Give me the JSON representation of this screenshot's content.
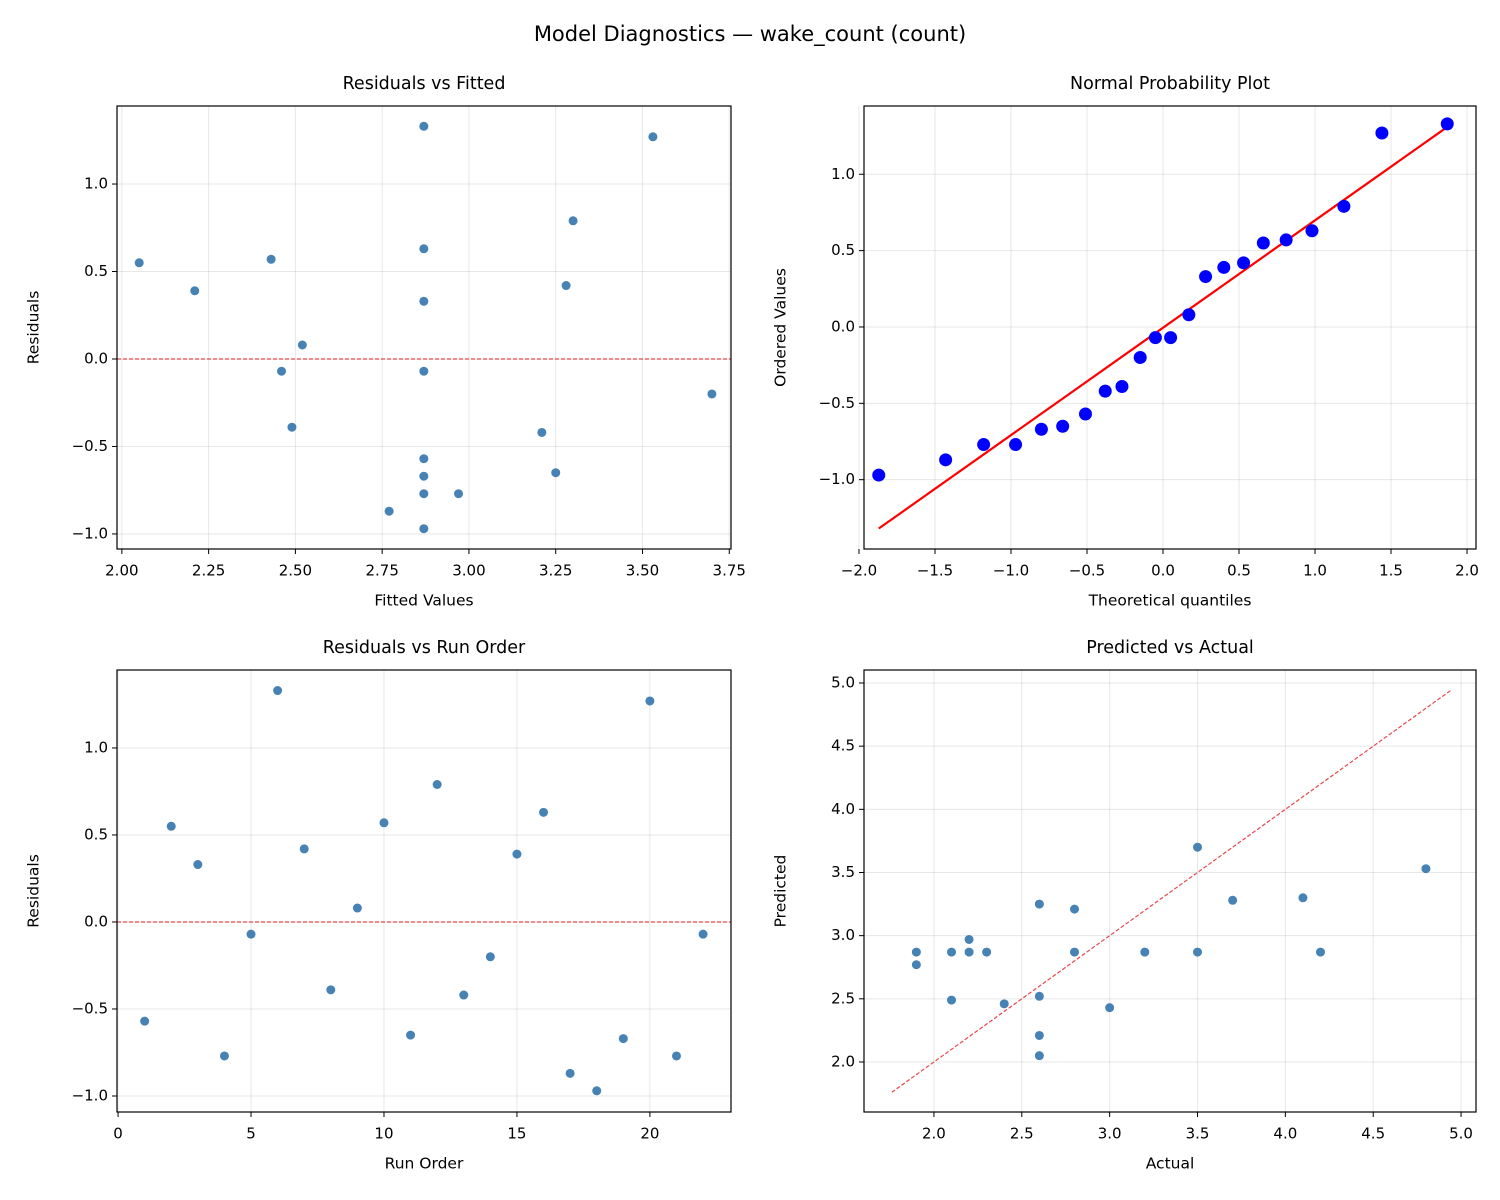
{
  "title": "Model Diagnostics — wake_count (count)",
  "chart_data": [
    {
      "type": "scatter",
      "title": "Residuals vs Fitted",
      "xlabel": "Fitted Values",
      "ylabel": "Residuals",
      "x": [
        2.87,
        2.05,
        2.87,
        2.97,
        2.46,
        2.87,
        3.28,
        2.49,
        2.52,
        2.43,
        3.25,
        3.3,
        3.21,
        3.7,
        2.21,
        2.87,
        2.77,
        2.87,
        2.87,
        3.53,
        2.87,
        2.87
      ],
      "values": [
        -0.57,
        0.55,
        0.33,
        -0.77,
        -0.07,
        1.33,
        0.42,
        -0.39,
        0.08,
        0.57,
        -0.65,
        0.79,
        -0.42,
        -0.2,
        0.39,
        0.63,
        -0.87,
        -0.97,
        -0.67,
        1.27,
        -0.77,
        -0.07
      ],
      "color": "#4682b4",
      "marker_size": 4.5,
      "xlim": [
        1.986,
        3.755
      ],
      "ylim": [
        -1.086,
        1.446
      ],
      "xticks": [
        {
          "value": 2.0,
          "label": "2.00"
        },
        {
          "value": 2.25,
          "label": "2.25"
        },
        {
          "value": 2.5,
          "label": "2.50"
        },
        {
          "value": 2.75,
          "label": "2.75"
        },
        {
          "value": 3.0,
          "label": "3.00"
        },
        {
          "value": 3.25,
          "label": "3.25"
        },
        {
          "value": 3.5,
          "label": "3.50"
        },
        {
          "value": 3.75,
          "label": "3.75"
        }
      ],
      "yticks": [
        {
          "value": -1.0,
          "label": "−1.0"
        },
        {
          "value": -0.5,
          "label": "−0.5"
        },
        {
          "value": 0,
          "label": "0.0"
        },
        {
          "value": 0.5,
          "label": "0.5"
        },
        {
          "value": 1.0,
          "label": "1.0"
        }
      ],
      "grid": true,
      "hline": {
        "value": 0,
        "color": "#e8474a"
      }
    },
    {
      "type": "scatter",
      "title": "Normal Probability Plot",
      "xlabel": "Theoretical quantiles",
      "ylabel": "Ordered Values",
      "x": [
        -1.87,
        -1.43,
        -1.18,
        -0.97,
        -0.8,
        -0.66,
        -0.51,
        -0.38,
        -0.27,
        -0.15,
        -0.05,
        0.05,
        0.17,
        0.28,
        0.4,
        0.53,
        0.66,
        0.81,
        0.98,
        1.19,
        1.44,
        1.87
      ],
      "values": [
        -0.97,
        -0.87,
        -0.77,
        -0.77,
        -0.67,
        -0.65,
        -0.57,
        -0.42,
        -0.39,
        -0.2,
        -0.07,
        -0.07,
        0.08,
        0.33,
        0.39,
        0.42,
        0.55,
        0.57,
        0.63,
        0.79,
        1.27,
        1.33
      ],
      "color": "#0000ff",
      "marker_size": 6.5,
      "lines": [
        {
          "x": [
            -1.87,
            1.87
          ],
          "values": [
            -1.32,
            1.31
          ],
          "color": "#ff0000",
          "dashed": false
        }
      ],
      "xlim": [
        -1.967,
        2.059
      ],
      "ylim": [
        -1.454,
        1.447
      ],
      "xticks": [
        {
          "value": -2.0,
          "label": "−2.0"
        },
        {
          "value": -1.5,
          "label": "−1.5"
        },
        {
          "value": -1.0,
          "label": "−1.0"
        },
        {
          "value": -0.5,
          "label": "−0.5"
        },
        {
          "value": 0,
          "label": "0.0"
        },
        {
          "value": 0.5,
          "label": "0.5"
        },
        {
          "value": 1.0,
          "label": "1.0"
        },
        {
          "value": 1.5,
          "label": "1.5"
        },
        {
          "value": 2.0,
          "label": "2.0"
        }
      ],
      "yticks": [
        {
          "value": -1.0,
          "label": "−1.0"
        },
        {
          "value": -0.5,
          "label": "−0.5"
        },
        {
          "value": 0,
          "label": "0.0"
        },
        {
          "value": 0.5,
          "label": "0.5"
        },
        {
          "value": 1.0,
          "label": "1.0"
        }
      ],
      "grid": true
    },
    {
      "type": "scatter",
      "title": "Residuals vs Run Order",
      "xlabel": "Run Order",
      "ylabel": "Residuals",
      "x": [
        1,
        2,
        3,
        4,
        5,
        6,
        7,
        8,
        9,
        10,
        11,
        12,
        13,
        14,
        15,
        16,
        17,
        18,
        19,
        20,
        21,
        22
      ],
      "values": [
        -0.57,
        0.55,
        0.33,
        -0.77,
        -0.07,
        1.33,
        0.42,
        -0.39,
        0.08,
        0.57,
        -0.65,
        0.79,
        -0.42,
        -0.2,
        0.39,
        0.63,
        -0.87,
        -0.97,
        -0.67,
        1.27,
        -0.77,
        -0.07
      ],
      "color": "#4682b4",
      "marker_size": 4.5,
      "xlim": [
        -0.04,
        23.05
      ],
      "ylim": [
        -1.092,
        1.448
      ],
      "xticks": [
        0,
        5,
        10,
        15,
        20
      ],
      "yticks": [
        {
          "value": -1.0,
          "label": "−1.0"
        },
        {
          "value": -0.5,
          "label": "−0.5"
        },
        {
          "value": 0,
          "label": "0.0"
        },
        {
          "value": 0.5,
          "label": "0.5"
        },
        {
          "value": 1.0,
          "label": "1.0"
        }
      ],
      "grid": true,
      "hline": {
        "value": 0,
        "color": "#e8474a"
      }
    },
    {
      "type": "scatter",
      "title": "Predicted vs Actual",
      "xlabel": "Actual",
      "ylabel": "Predicted",
      "x": [
        2.3,
        2.6,
        3.2,
        2.2,
        2.4,
        4.2,
        3.7,
        2.1,
        2.6,
        3.0,
        2.6,
        4.1,
        2.8,
        3.5,
        2.6,
        3.5,
        1.9,
        1.9,
        2.2,
        4.8,
        2.1,
        2.8
      ],
      "values": [
        2.87,
        2.05,
        2.87,
        2.97,
        2.46,
        2.87,
        3.28,
        2.49,
        2.52,
        2.43,
        3.25,
        3.3,
        3.21,
        3.7,
        2.21,
        2.87,
        2.77,
        2.87,
        2.87,
        3.53,
        2.87,
        2.87
      ],
      "color": "#4682b4",
      "marker_size": 4.5,
      "lines": [
        {
          "x": [
            1.76,
            4.94
          ],
          "values": [
            1.76,
            4.94
          ],
          "color": "#e8474a",
          "dashed": true
        }
      ],
      "xlim": [
        1.602,
        5.085
      ],
      "ylim": [
        1.604,
        5.103
      ],
      "xticks": [
        {
          "value": 2.0,
          "label": "2.0"
        },
        {
          "value": 2.5,
          "label": "2.5"
        },
        {
          "value": 3.0,
          "label": "3.0"
        },
        {
          "value": 3.5,
          "label": "3.5"
        },
        {
          "value": 4.0,
          "label": "4.0"
        },
        {
          "value": 4.5,
          "label": "4.5"
        },
        {
          "value": 5.0,
          "label": "5.0"
        }
      ],
      "yticks": [
        {
          "value": 2.0,
          "label": "2.0"
        },
        {
          "value": 2.5,
          "label": "2.5"
        },
        {
          "value": 3.0,
          "label": "3.0"
        },
        {
          "value": 3.5,
          "label": "3.5"
        },
        {
          "value": 4.0,
          "label": "4.0"
        },
        {
          "value": 4.5,
          "label": "4.5"
        },
        {
          "value": 5.0,
          "label": "5.0"
        }
      ],
      "grid": true
    }
  ]
}
